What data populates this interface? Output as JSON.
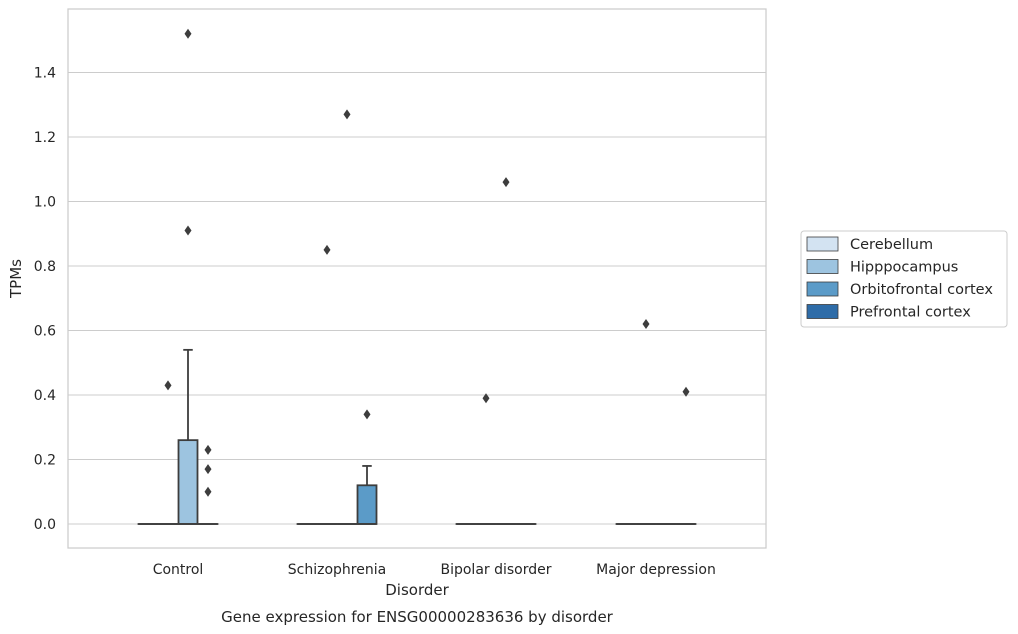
{
  "chart_data": {
    "type": "box",
    "title": "Gene expression for ENSG00000283636 by disorder",
    "xlabel": "Disorder",
    "ylabel": "TPMs",
    "ylim": [
      -0.075,
      1.59
    ],
    "yticks": [
      0.0,
      0.2,
      0.4,
      0.6,
      0.8,
      1.0,
      1.2,
      1.4
    ],
    "ytick_labels": [
      "0.0",
      "0.2",
      "0.4",
      "0.6",
      "0.8",
      "1.0",
      "1.2",
      "1.4"
    ],
    "grid": "horizontal",
    "legend_position": "right",
    "categories": [
      "Control",
      "Schizophrenia",
      "Bipolar disorder",
      "Major depression"
    ],
    "series": [
      {
        "name": "Cerebellum",
        "color": "#d3e3f2",
        "boxes": [
          {
            "q1": 0,
            "median": 0,
            "q3": 0,
            "whisker_low": 0,
            "whisker_high": 0,
            "outliers": []
          },
          {
            "q1": 0,
            "median": 0,
            "q3": 0,
            "whisker_low": 0,
            "whisker_high": 0,
            "outliers": []
          },
          {
            "q1": 0,
            "median": 0,
            "q3": 0,
            "whisker_low": 0,
            "whisker_high": 0,
            "outliers": []
          },
          {
            "q1": 0,
            "median": 0,
            "q3": 0,
            "whisker_low": 0,
            "whisker_high": 0,
            "outliers": []
          }
        ]
      },
      {
        "name": "Hipppocampus",
        "color": "#9dc4e0",
        "boxes": [
          {
            "q1": 0,
            "median": 0,
            "q3": 0,
            "whisker_low": 0,
            "whisker_high": 0,
            "outliers": [
              0.43
            ]
          },
          {
            "q1": 0,
            "median": 0,
            "q3": 0,
            "whisker_low": 0,
            "whisker_high": 0,
            "outliers": [
              0.85
            ]
          },
          {
            "q1": 0,
            "median": 0,
            "q3": 0,
            "whisker_low": 0,
            "whisker_high": 0,
            "outliers": [
              0.39
            ]
          },
          {
            "q1": 0,
            "median": 0,
            "q3": 0,
            "whisker_low": 0,
            "whisker_high": 0,
            "outliers": [
              0.62
            ]
          }
        ]
      },
      {
        "name": "Orbitofrontal cortex",
        "color": "#5b9bc8",
        "boxes": [
          {
            "q1": 0,
            "median": 0,
            "q3": 0.26,
            "whisker_low": 0,
            "whisker_high": 0.54,
            "outliers": [
              0.91,
              1.52
            ]
          },
          {
            "q1": 0,
            "median": 0,
            "q3": 0,
            "whisker_low": 0,
            "whisker_high": 0,
            "outliers": [
              1.27
            ]
          },
          {
            "q1": 0,
            "median": 0,
            "q3": 0,
            "whisker_low": 0,
            "whisker_high": 0,
            "outliers": [
              1.06
            ]
          },
          {
            "q1": 0,
            "median": 0,
            "q3": 0,
            "whisker_low": 0,
            "whisker_high": 0,
            "outliers": []
          }
        ]
      },
      {
        "name": "Prefrontal cortex",
        "color": "#2e6ca8",
        "boxes": [
          {
            "q1": 0,
            "median": 0,
            "q3": 0,
            "whisker_low": 0,
            "whisker_high": 0,
            "outliers": [
              0.1,
              0.17,
              0.23
            ]
          },
          {
            "q1": 0,
            "median": 0,
            "q3": 0.12,
            "whisker_low": 0,
            "whisker_high": 0.18,
            "outliers": [
              0.34
            ]
          },
          {
            "q1": 0,
            "median": 0,
            "q3": 0,
            "whisker_low": 0,
            "whisker_high": 0,
            "outliers": []
          },
          {
            "q1": 0,
            "median": 0,
            "q3": 0,
            "whisker_low": 0,
            "whisker_high": 0,
            "outliers": [
              0.41
            ]
          }
        ]
      }
    ],
    "box_fill_overrides": [
      {
        "category": 0,
        "series": 2,
        "color": "#9dc4e0"
      },
      {
        "category": 1,
        "series": 3,
        "color": "#5b9bc8"
      }
    ]
  }
}
